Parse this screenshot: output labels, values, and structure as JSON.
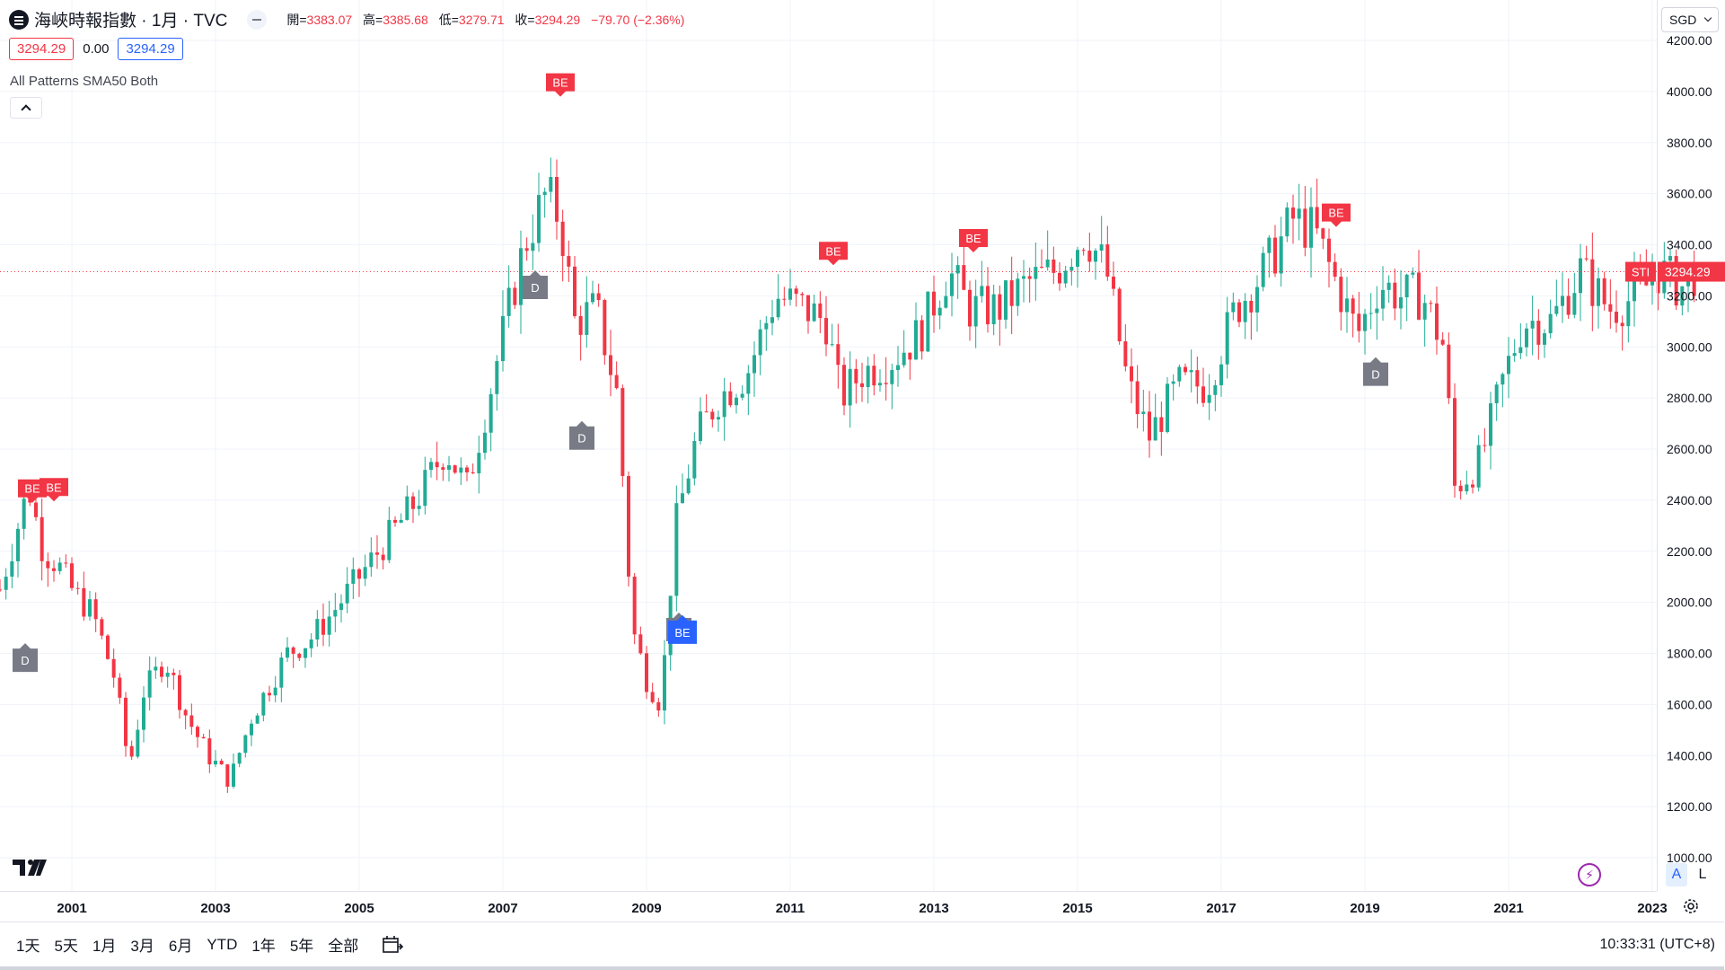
{
  "header": {
    "title": "海峽時報指數 · 1月 · TVC",
    "ohlc": [
      {
        "key": "開=",
        "value": "3383.07"
      },
      {
        "key": "高=",
        "value": "3385.68"
      },
      {
        "key": "低=",
        "value": "3279.71"
      },
      {
        "key": "收=",
        "value": "3294.29"
      }
    ],
    "change": "−79.70 (−2.36%)",
    "bid": "3294.29",
    "spread": "0.00",
    "ask": "3294.29",
    "indicator": "All Patterns SMA50 Both"
  },
  "currency": "SGD",
  "price_axis": {
    "symbol": "STI",
    "last_price": "3294.29",
    "labels": [
      "4200.00",
      "4000.00",
      "3800.00",
      "3600.00",
      "3400.00",
      "3200.00",
      "3000.00",
      "2800.00",
      "2600.00",
      "2400.00",
      "2200.00",
      "2000.00",
      "1800.00",
      "1600.00",
      "1400.00",
      "1200.00",
      "1000.00"
    ]
  },
  "axis_toggle": {
    "auto": "A",
    "log": "L"
  },
  "periods": [
    "1天",
    "5天",
    "1月",
    "3月",
    "6月",
    "YTD",
    "1年",
    "5年",
    "全部"
  ],
  "clock": "10:33:31 (UTC+8)",
  "colors": {
    "up": "#22ab94",
    "down": "#f23645",
    "bear": "#f23645",
    "bull": "#2962ff",
    "doji": "#787b86"
  },
  "chart_data": {
    "type": "candlestick",
    "title": "海峽時報指數",
    "interval": "1月",
    "ylim": [
      1000,
      4200
    ],
    "x_ticks": [
      "2001",
      "2003",
      "2005",
      "2007",
      "2009",
      "2011",
      "2013",
      "2015",
      "2017",
      "2019",
      "2021",
      "2023"
    ],
    "x_start": 2000.0,
    "x_end": 2025.0,
    "closes_by_year": [
      {
        "year": 2000.0,
        "close": 2050
      },
      {
        "year": 2000.2,
        "close": 2250
      },
      {
        "year": 2000.4,
        "close": 2450
      },
      {
        "year": 2000.6,
        "close": 2200
      },
      {
        "year": 2000.8,
        "close": 2150
      },
      {
        "year": 2001.0,
        "close": 2050
      },
      {
        "year": 2001.3,
        "close": 1950
      },
      {
        "year": 2001.6,
        "close": 1700
      },
      {
        "year": 2001.8,
        "close": 1350
      },
      {
        "year": 2002.0,
        "close": 1650
      },
      {
        "year": 2002.3,
        "close": 1780
      },
      {
        "year": 2002.6,
        "close": 1550
      },
      {
        "year": 2002.9,
        "close": 1400
      },
      {
        "year": 2003.2,
        "close": 1300
      },
      {
        "year": 2003.5,
        "close": 1550
      },
      {
        "year": 2003.8,
        "close": 1700
      },
      {
        "year": 2004.0,
        "close": 1800
      },
      {
        "year": 2004.3,
        "close": 1850
      },
      {
        "year": 2004.6,
        "close": 1950
      },
      {
        "year": 2005.0,
        "close": 2100
      },
      {
        "year": 2005.4,
        "close": 2250
      },
      {
        "year": 2005.8,
        "close": 2400
      },
      {
        "year": 2006.2,
        "close": 2600
      },
      {
        "year": 2006.5,
        "close": 2450
      },
      {
        "year": 2006.8,
        "close": 2800
      },
      {
        "year": 2007.0,
        "close": 3050
      },
      {
        "year": 2007.3,
        "close": 3400
      },
      {
        "year": 2007.6,
        "close": 3600
      },
      {
        "year": 2007.8,
        "close": 3500
      },
      {
        "year": 2008.0,
        "close": 3100
      },
      {
        "year": 2008.3,
        "close": 3150
      },
      {
        "year": 2008.6,
        "close": 2800
      },
      {
        "year": 2008.8,
        "close": 1900
      },
      {
        "year": 2009.0,
        "close": 1700
      },
      {
        "year": 2009.2,
        "close": 1600
      },
      {
        "year": 2009.4,
        "close": 2300
      },
      {
        "year": 2009.7,
        "close": 2650
      },
      {
        "year": 2010.0,
        "close": 2800
      },
      {
        "year": 2010.4,
        "close": 2900
      },
      {
        "year": 2010.8,
        "close": 3200
      },
      {
        "year": 2011.2,
        "close": 3150
      },
      {
        "year": 2011.5,
        "close": 3100
      },
      {
        "year": 2011.7,
        "close": 2800
      },
      {
        "year": 2012.0,
        "close": 2900
      },
      {
        "year": 2012.4,
        "close": 2950
      },
      {
        "year": 2012.8,
        "close": 3050
      },
      {
        "year": 2013.2,
        "close": 3300
      },
      {
        "year": 2013.5,
        "close": 3150
      },
      {
        "year": 2013.9,
        "close": 3150
      },
      {
        "year": 2014.3,
        "close": 3250
      },
      {
        "year": 2014.7,
        "close": 3300
      },
      {
        "year": 2015.1,
        "close": 3450
      },
      {
        "year": 2015.4,
        "close": 3300
      },
      {
        "year": 2015.7,
        "close": 2850
      },
      {
        "year": 2016.0,
        "close": 2650
      },
      {
        "year": 2016.4,
        "close": 2850
      },
      {
        "year": 2016.8,
        "close": 2850
      },
      {
        "year": 2017.2,
        "close": 3150
      },
      {
        "year": 2017.6,
        "close": 3300
      },
      {
        "year": 2018.0,
        "close": 3500
      },
      {
        "year": 2018.3,
        "close": 3450
      },
      {
        "year": 2018.6,
        "close": 3250
      },
      {
        "year": 2018.9,
        "close": 3050
      },
      {
        "year": 2019.2,
        "close": 3250
      },
      {
        "year": 2019.5,
        "close": 3200
      },
      {
        "year": 2019.8,
        "close": 3200
      },
      {
        "year": 2020.1,
        "close": 3000
      },
      {
        "year": 2020.25,
        "close": 2450
      },
      {
        "year": 2020.6,
        "close": 2550
      },
      {
        "year": 2020.9,
        "close": 2850
      },
      {
        "year": 2021.2,
        "close": 3100
      },
      {
        "year": 2021.6,
        "close": 3100
      },
      {
        "year": 2022.0,
        "close": 3300
      },
      {
        "year": 2022.4,
        "close": 3150
      },
      {
        "year": 2022.8,
        "close": 3200
      },
      {
        "year": 2023.1,
        "close": 3300
      },
      {
        "year": 2023.4,
        "close": 3230
      },
      {
        "year": 2023.6,
        "close": 3294
      }
    ],
    "patterns": [
      {
        "label": "BE",
        "kind": "bear",
        "year": 2000.45,
        "price": 2390
      },
      {
        "label": "BE",
        "kind": "bear",
        "year": 2000.75,
        "price": 2395
      },
      {
        "label": "D",
        "kind": "doji",
        "year": 2000.35,
        "price": 1840
      },
      {
        "label": "BE",
        "kind": "bear",
        "year": 2007.8,
        "price": 3980
      },
      {
        "label": "D",
        "kind": "doji",
        "year": 2007.45,
        "price": 3300
      },
      {
        "label": "D",
        "kind": "doji",
        "year": 2008.1,
        "price": 2710
      },
      {
        "label": "BE",
        "kind": "bear",
        "year": 2011.6,
        "price": 3320
      },
      {
        "label": "BE",
        "kind": "bear",
        "year": 2013.55,
        "price": 3370
      },
      {
        "label": "BE",
        "kind": "bear",
        "year": 2018.6,
        "price": 3470
      },
      {
        "label": "D",
        "kind": "doji",
        "year": 2019.15,
        "price": 2960
      },
      {
        "label": "D",
        "kind": "doji",
        "year": 2009.45,
        "price": 1960
      },
      {
        "label": "BE",
        "kind": "bull",
        "year": 2009.5,
        "price": 1950
      }
    ]
  }
}
